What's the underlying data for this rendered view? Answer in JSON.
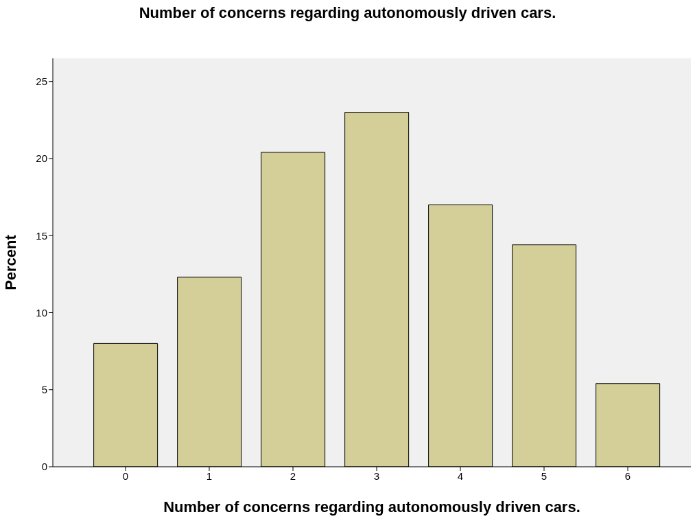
{
  "chart_data": {
    "type": "bar",
    "title": "Number of concerns regarding autonomously driven cars.",
    "xlabel": "Number of concerns regarding autonomously driven cars.",
    "ylabel": "Percent",
    "categories": [
      "0",
      "1",
      "2",
      "3",
      "4",
      "5",
      "6"
    ],
    "values": [
      8.0,
      12.3,
      20.4,
      23.0,
      17.0,
      14.4,
      5.4
    ],
    "color": "#d4cf98",
    "ylim": [
      0,
      26.5
    ],
    "yticks": [
      0,
      5,
      10,
      15,
      20,
      25
    ],
    "grid": false
  }
}
